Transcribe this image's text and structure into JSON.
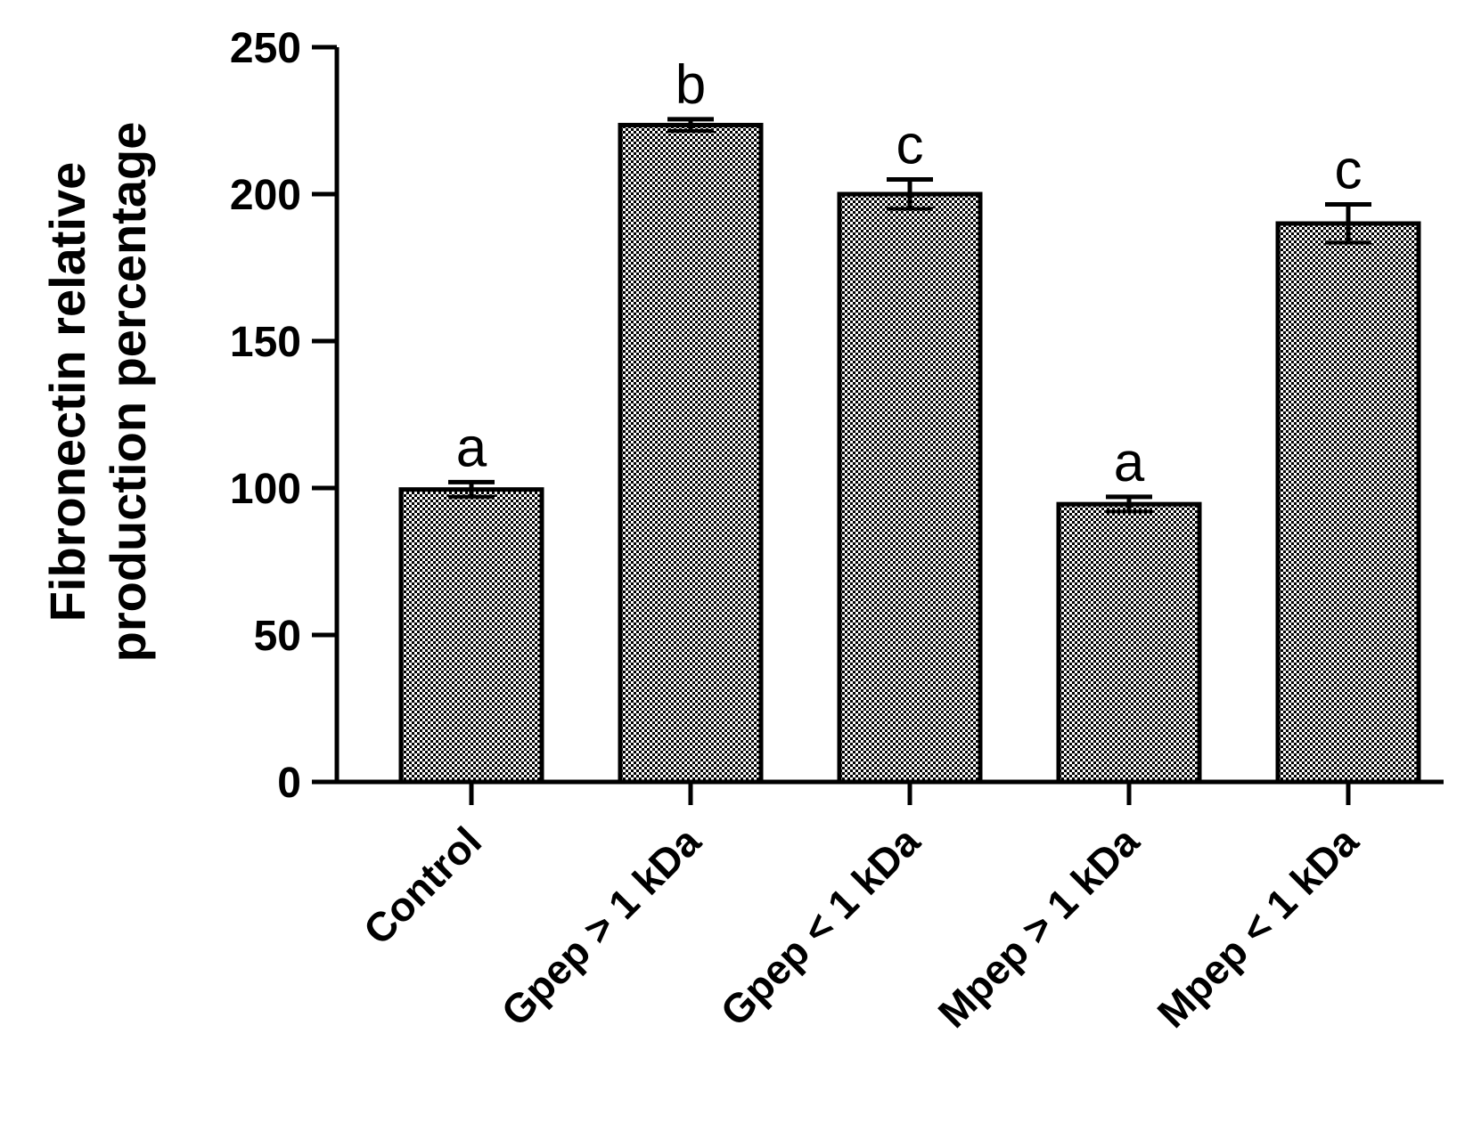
{
  "chart_data": {
    "type": "bar",
    "title": "",
    "xlabel": "",
    "ylabel_lines": [
      "Fibronectin relative",
      "production percentage"
    ],
    "categories": [
      "Control",
      "Gpep > 1 kDa",
      "Gpep < 1 kDa",
      "Mpep > 1 kDa",
      "Mpep < 1 kDa"
    ],
    "values": [
      99.5,
      223.5,
      200,
      94.5,
      190
    ],
    "errors": [
      2.5,
      2,
      5,
      2.5,
      6.5
    ],
    "significance": [
      "a",
      "b",
      "c",
      "a",
      "c"
    ],
    "ylim": [
      0,
      250
    ],
    "yticks": [
      0,
      50,
      100,
      150,
      200,
      250
    ],
    "grid": false,
    "bar_fill": "checkerboard",
    "colors": {
      "bar_pattern_dark": "#000000",
      "bar_pattern_light": "#ffffff",
      "axis": "#000000"
    }
  }
}
